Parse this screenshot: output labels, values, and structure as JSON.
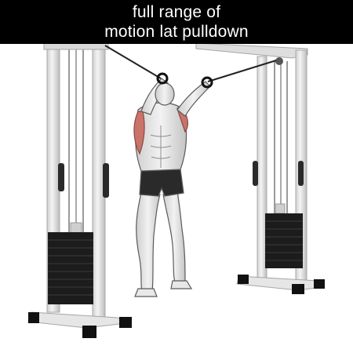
{
  "title": {
    "line1": "full range of",
    "line2": "motion lat pulldown"
  },
  "colors": {
    "header_background": "#000000",
    "header_text": "#ffffff",
    "frame": "#e2e2e2",
    "weight_stack": "#1c1c1c",
    "highlighted_muscle": "#c9736a",
    "shorts": "#2a2a2a"
  },
  "illustration": {
    "subject": "athlete-performing-cable-lat-pulldown",
    "equipment": "dual-cable-crossover-machine"
  }
}
